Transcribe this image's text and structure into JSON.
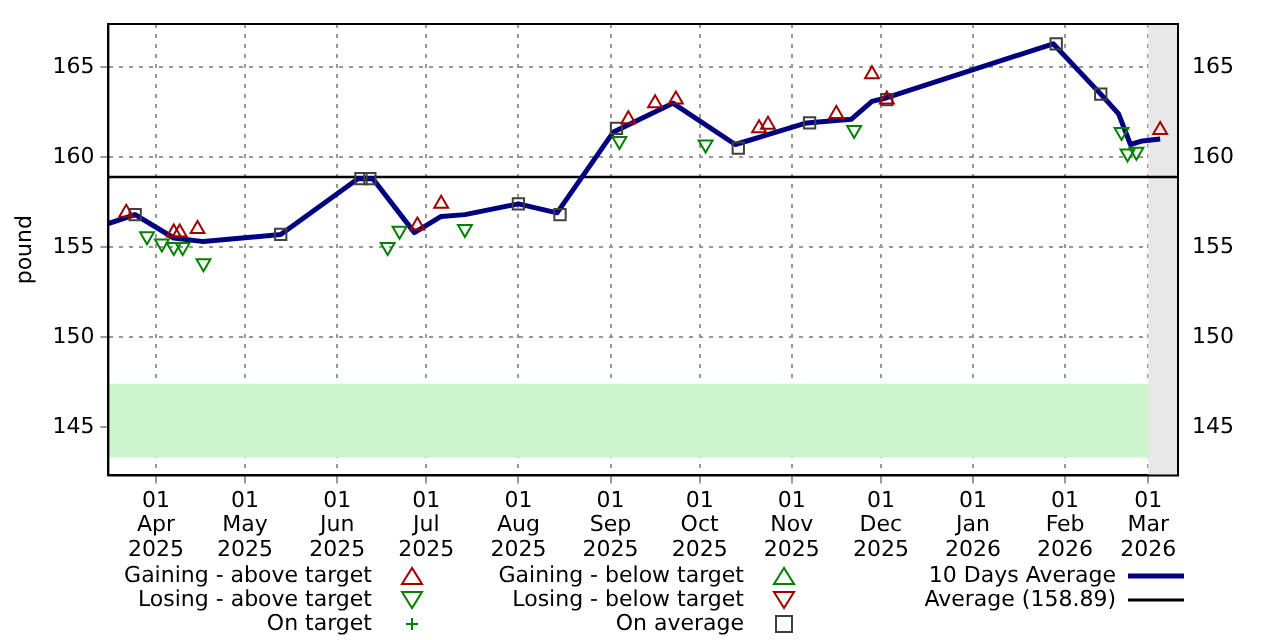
{
  "chart_data": {
    "type": "scatter",
    "ylabel": "pound",
    "xlim": [
      "2025-03-16",
      "2026-03-11"
    ],
    "xticks": [
      {
        "value": "2025-04-01",
        "label": "01 Apr 2025"
      },
      {
        "value": "2025-05-01",
        "label": "01 May 2025"
      },
      {
        "value": "2025-06-01",
        "label": "01 Jun 2025"
      },
      {
        "value": "2025-07-01",
        "label": "01 Jul 2025"
      },
      {
        "value": "2025-08-01",
        "label": "01 Aug 2025"
      },
      {
        "value": "2025-09-01",
        "label": "01 Sep 2025"
      },
      {
        "value": "2025-10-01",
        "label": "01 Oct 2025"
      },
      {
        "value": "2025-11-01",
        "label": "01 Nov 2025"
      },
      {
        "value": "2025-12-01",
        "label": "01 Dec 2025"
      },
      {
        "value": "2026-01-01",
        "label": "01 Jan 2026"
      },
      {
        "value": "2026-02-01",
        "label": "01 Feb 2026"
      },
      {
        "value": "2026-03-01",
        "label": "01 Mar 2026"
      }
    ],
    "ylim": [
      142.3,
      167.4
    ],
    "yticks": [
      145,
      150,
      155,
      160,
      165
    ],
    "y2lim": [
      142.3,
      167.4
    ],
    "y2ticks": [
      145,
      150,
      155,
      160,
      165
    ],
    "grid": true,
    "legend": "bottom",
    "bands": [
      {
        "axis": "y",
        "from": 143.3,
        "to": 147.4,
        "color": "#ccf5cc"
      },
      {
        "axis": "x",
        "from": "2026-03-01",
        "to": "2026-03-11",
        "color": "#e8e8e8"
      }
    ],
    "ref_lines": [
      {
        "axis": "y",
        "value": 158.89,
        "label": "Average (158.89)",
        "color": "#000000"
      }
    ],
    "series": [
      {
        "name": "Gaining - above target",
        "marker": "triangle",
        "color": "#a00000",
        "x": [
          "2025-03-22",
          "2025-04-07",
          "2025-04-09",
          "2025-04-15",
          "2025-06-28",
          "2025-07-06",
          "2025-09-07",
          "2025-09-16",
          "2025-09-23",
          "2025-10-21",
          "2025-10-24",
          "2025-11-16",
          "2025-11-28",
          "2025-12-03",
          "2026-03-05"
        ],
        "values": [
          156.9,
          155.8,
          155.8,
          156.0,
          156.2,
          157.4,
          162.1,
          163.0,
          163.2,
          161.6,
          161.8,
          162.4,
          164.6,
          163.2,
          161.5
        ]
      },
      {
        "name": "Losing - above target",
        "marker": "triangle-down",
        "color": "#008000",
        "x": [
          "2025-03-29",
          "2025-04-03",
          "2025-04-07",
          "2025-04-10",
          "2025-04-17",
          "2025-06-18",
          "2025-06-22",
          "2025-07-14",
          "2025-09-04",
          "2025-10-03",
          "2025-11-22",
          "2026-02-20",
          "2026-02-22",
          "2026-02-25"
        ],
        "values": [
          155.6,
          155.2,
          155.0,
          155.0,
          154.1,
          155.0,
          155.9,
          156.0,
          160.9,
          160.7,
          161.5,
          161.4,
          160.2,
          160.3
        ]
      },
      {
        "name": "On target",
        "marker": "cross",
        "color": "#008000"
      },
      {
        "name": "Gaining - below target",
        "marker": "triangle",
        "color": "#008000"
      },
      {
        "name": "Losing - below target",
        "marker": "triangle-down",
        "color": "#a00000"
      },
      {
        "name": "On average",
        "marker": "square",
        "color": "#404040",
        "x": [
          "2025-03-25",
          "2025-05-13",
          "2025-06-09",
          "2025-06-12",
          "2025-08-01",
          "2025-08-15",
          "2025-09-03",
          "2025-10-14",
          "2025-11-07",
          "2025-12-03",
          "2026-01-29",
          "2026-02-13"
        ],
        "values": [
          156.8,
          155.7,
          158.8,
          158.8,
          157.4,
          156.8,
          161.6,
          160.5,
          161.9,
          163.2,
          166.3,
          163.5
        ]
      },
      {
        "name": "10 Days Average",
        "type": "line",
        "marker": "none",
        "color": "#000080",
        "x": [
          "2025-03-16",
          "2025-03-25",
          "2025-04-07",
          "2025-04-17",
          "2025-05-13",
          "2025-06-08",
          "2025-06-13",
          "2025-06-27",
          "2025-07-06",
          "2025-07-14",
          "2025-08-01",
          "2025-08-14",
          "2025-09-02",
          "2025-09-22",
          "2025-10-13",
          "2025-11-06",
          "2025-11-21",
          "2025-11-28",
          "2025-12-03",
          "2026-01-28",
          "2026-02-13",
          "2026-02-19",
          "2026-02-23",
          "2026-02-27",
          "2026-03-05"
        ],
        "values": [
          156.3,
          156.8,
          155.5,
          155.3,
          155.7,
          158.8,
          158.8,
          155.8,
          156.7,
          156.8,
          157.4,
          156.9,
          161.4,
          163.0,
          160.7,
          161.9,
          162.1,
          163.1,
          163.3,
          166.3,
          163.5,
          162.4,
          160.7,
          160.9,
          161.0
        ]
      }
    ]
  }
}
